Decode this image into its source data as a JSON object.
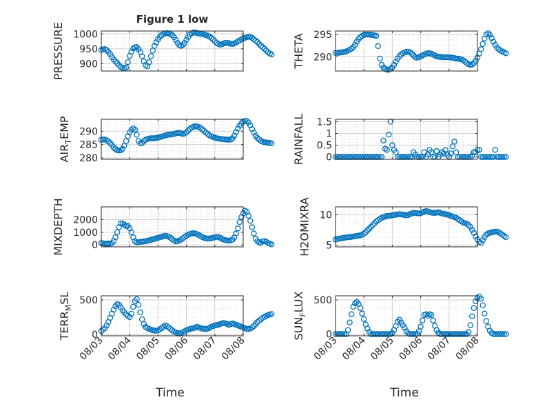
{
  "figure": {
    "title": "Figure 1 low"
  },
  "colors": {
    "marker": "#0072BD",
    "axis": "#262626",
    "grid": "#dcdcdc",
    "background": "#ffffff"
  },
  "chart_data": [
    {
      "type": "scatter",
      "id": "pressure",
      "title": "Figure 1 low",
      "ylabel": "PRESSURE",
      "xlabel": "",
      "ylim": [
        875,
        1010
      ],
      "yticks": [
        900,
        950,
        1000
      ],
      "xlim": [
        "08/03",
        "08/08"
      ],
      "grid": true,
      "minor_grid": true,
      "x_start": "08/03",
      "x_step_hours": 1.5,
      "y": [
        946,
        948,
        949,
        946,
        940,
        932,
        922,
        914,
        907,
        902,
        895,
        888,
        885,
        884,
        887,
        905,
        926,
        940,
        951,
        955,
        956,
        949,
        939,
        925,
        908,
        895,
        891,
        905,
        925,
        944,
        960,
        972,
        982,
        990,
        996,
        1000,
        1002,
        1003,
        1002,
        1000,
        996,
        989,
        980,
        970,
        962,
        960,
        963,
        970,
        980,
        990,
        998,
        1003,
        1005,
        1005,
        1003,
        1002,
        1001,
        1000,
        998,
        996,
        994,
        991,
        987,
        982,
        976,
        970,
        966,
        964,
        965,
        968,
        970,
        970,
        969,
        967,
        966,
        968,
        971,
        975,
        978,
        982,
        985,
        987,
        989,
        991,
        990,
        987,
        982,
        977,
        973,
        966,
        960,
        956,
        950,
        944,
        938,
        934,
        931
      ]
    },
    {
      "type": "scatter",
      "id": "theta",
      "title": "",
      "ylabel": "THETA",
      "xlabel": "",
      "ylim": [
        286.8,
        295.8
      ],
      "yticks": [
        290,
        295
      ],
      "xlim": [
        "08/03",
        "08/08"
      ],
      "grid": true,
      "minor_grid": true,
      "x_start": "08/03",
      "x_step_hours": 1.5,
      "y": [
        290.9,
        290.9,
        290.9,
        291.0,
        291.0,
        291.1,
        291.2,
        291.4,
        291.6,
        291.8,
        292.2,
        292.7,
        293.4,
        294.0,
        294.4,
        294.7,
        294.9,
        295.0,
        295.0,
        295.0,
        294.9,
        294.9,
        294.8,
        294.7,
        292.4,
        289.6,
        288.2,
        287.6,
        287.3,
        287.1,
        287.1,
        287.3,
        287.6,
        288.2,
        288.9,
        289.6,
        290.1,
        290.5,
        290.8,
        291.0,
        291.1,
        291.1,
        291.0,
        290.7,
        290.3,
        289.9,
        289.8,
        289.9,
        290.1,
        290.3,
        290.5,
        290.7,
        290.8,
        290.8,
        290.7,
        290.5,
        290.3,
        290.1,
        290.0,
        290.0,
        289.9,
        289.9,
        289.9,
        289.9,
        289.9,
        289.8,
        289.8,
        289.7,
        289.6,
        289.6,
        289.5,
        289.4,
        289.2,
        288.9,
        288.6,
        288.3,
        288.2,
        288.3,
        288.6,
        289.1,
        289.8,
        290.7,
        291.7,
        292.9,
        294.1,
        295.0,
        295.3,
        294.9,
        294.2,
        293.4,
        292.7,
        292.1,
        291.7,
        291.4,
        291.2,
        291.0,
        290.8
      ]
    },
    {
      "type": "scatter",
      "id": "air_temp",
      "title": "",
      "ylabel": "AIR_TEMP",
      "xlabel": "",
      "ylim": [
        279.5,
        294.5
      ],
      "yticks": [
        280,
        285,
        290
      ],
      "xlim": [
        "08/03",
        "08/08"
      ],
      "grid": true,
      "minor_grid": true,
      "x_start": "08/03",
      "x_step_hours": 1.5,
      "y": [
        286.8,
        286.9,
        286.9,
        286.6,
        286.2,
        285.6,
        284.9,
        284.0,
        283.3,
        282.9,
        282.8,
        282.9,
        283.4,
        284.6,
        286.3,
        288.2,
        289.6,
        290.5,
        291.1,
        290.6,
        288.7,
        286.4,
        285.5,
        285.6,
        286.3,
        286.8,
        287.1,
        287.3,
        287.4,
        287.4,
        287.4,
        287.5,
        287.6,
        287.8,
        288.0,
        288.2,
        288.4,
        288.6,
        288.7,
        288.8,
        288.9,
        289.0,
        289.2,
        289.4,
        289.4,
        289.2,
        289.0,
        289.2,
        289.6,
        290.3,
        290.9,
        291.4,
        291.7,
        291.9,
        291.8,
        291.6,
        291.2,
        290.7,
        290.1,
        289.5,
        289.0,
        288.5,
        288.1,
        287.8,
        287.6,
        287.4,
        287.3,
        287.2,
        287.1,
        287.0,
        286.9,
        286.9,
        286.8,
        286.9,
        287.4,
        288.4,
        289.7,
        291.0,
        292.1,
        293.0,
        293.6,
        293.9,
        293.8,
        293.3,
        292.2,
        290.8,
        289.5,
        288.4,
        287.5,
        286.9,
        286.4,
        286.1,
        285.9,
        285.8,
        285.7,
        285.6,
        285.5
      ]
    },
    {
      "type": "scatter",
      "id": "rainfall",
      "title": "",
      "ylabel": "RAINFALL",
      "xlabel": "",
      "ylim": [
        -0.1,
        1.6
      ],
      "yticks": [
        0,
        0.5,
        1,
        1.5
      ],
      "xlim": [
        "08/03",
        "08/08"
      ],
      "grid": true,
      "minor_grid": true,
      "x_start": "08/03",
      "x_step_hours": 1.5,
      "y": [
        0,
        0,
        0,
        0,
        0,
        0,
        0,
        0,
        0,
        0,
        0,
        0,
        0,
        0,
        0,
        0,
        0,
        0,
        0,
        0,
        0,
        0,
        0,
        0,
        0,
        0,
        0,
        0.7,
        0.35,
        0.3,
        0.95,
        1.5,
        0.5,
        0.3,
        0.2,
        0,
        0,
        0,
        0,
        0,
        0,
        0,
        0,
        0,
        0.2,
        0.1,
        0,
        0,
        0,
        0,
        0.2,
        0,
        0.1,
        0.3,
        0.2,
        0,
        0,
        0.25,
        0,
        0.1,
        0.2,
        0.15,
        0.3,
        0.1,
        0,
        0.15,
        0.45,
        0.65,
        0.2,
        0,
        0,
        0,
        0,
        0,
        0,
        0,
        0,
        0.05,
        0.2,
        0.2,
        0.3,
        0.3,
        0,
        0,
        0,
        0,
        0,
        0,
        0,
        0,
        0.3,
        0,
        0,
        0,
        0,
        0,
        0
      ]
    },
    {
      "type": "scatter",
      "id": "mixdepth",
      "title": "",
      "ylabel": "MIXDEPTH",
      "xlabel": "",
      "ylim": [
        -150,
        3000
      ],
      "yticks": [
        0,
        1000,
        2000
      ],
      "xlim": [
        "08/03",
        "08/08"
      ],
      "grid": true,
      "minor_grid": true,
      "x_start": "08/03",
      "x_step_hours": 1.5,
      "y": [
        150,
        120,
        100,
        100,
        100,
        110,
        150,
        300,
        600,
        1000,
        1400,
        1700,
        1700,
        1600,
        1500,
        1500,
        1300,
        1000,
        600,
        300,
        200,
        220,
        240,
        260,
        280,
        300,
        330,
        360,
        400,
        440,
        480,
        520,
        560,
        600,
        640,
        690,
        720,
        700,
        650,
        560,
        460,
        350,
        280,
        300,
        350,
        420,
        520,
        630,
        720,
        800,
        860,
        900,
        920,
        900,
        850,
        780,
        700,
        620,
        560,
        520,
        500,
        510,
        530,
        560,
        600,
        640,
        620,
        560,
        480,
        420,
        380,
        350,
        340,
        360,
        420,
        600,
        900,
        1300,
        1800,
        2200,
        2500,
        2700,
        2600,
        2300,
        1900,
        1400,
        900,
        500,
        300,
        200,
        150,
        280,
        300,
        250,
        150,
        100,
        50
      ]
    },
    {
      "type": "scatter",
      "id": "h2omixra",
      "title": "",
      "ylabel": "H2OMIXRA",
      "xlabel": "",
      "ylim": [
        4.7,
        11.3
      ],
      "yticks": [
        5,
        10
      ],
      "xlim": [
        "08/03",
        "08/08"
      ],
      "grid": true,
      "minor_grid": true,
      "x_start": "08/03",
      "x_step_hours": 1.5,
      "y": [
        5.9,
        6.0,
        6.05,
        6.1,
        6.15,
        6.2,
        6.25,
        6.3,
        6.3,
        6.35,
        6.4,
        6.45,
        6.5,
        6.55,
        6.6,
        6.7,
        6.9,
        7.1,
        7.4,
        7.7,
        8.0,
        8.3,
        8.6,
        8.9,
        9.1,
        9.3,
        9.5,
        9.6,
        9.7,
        9.8,
        9.8,
        9.85,
        9.9,
        9.95,
        10.0,
        10.05,
        10.1,
        10.05,
        10.0,
        9.95,
        9.9,
        9.95,
        10.1,
        10.2,
        10.3,
        10.3,
        10.25,
        10.2,
        10.25,
        10.4,
        10.5,
        10.6,
        10.55,
        10.45,
        10.35,
        10.3,
        10.3,
        10.35,
        10.4,
        10.3,
        10.2,
        10.15,
        10.1,
        10.0,
        9.95,
        9.8,
        9.7,
        9.6,
        9.5,
        9.3,
        9.1,
        8.9,
        8.7,
        8.6,
        8.5,
        8.3,
        8.0,
        7.5,
        7.0,
        6.4,
        5.9,
        5.5,
        5.3,
        5.8,
        6.3,
        6.7,
        6.9,
        7.0,
        7.1,
        7.15,
        7.2,
        7.2,
        7.1,
        6.9,
        6.7,
        6.5,
        6.3
      ]
    },
    {
      "type": "scatter",
      "id": "terr_msl",
      "title": "",
      "ylabel": "TERR_MSL",
      "xlabel": "Time",
      "ylim": [
        -20,
        560
      ],
      "yticks": [
        0,
        500
      ],
      "xlim": [
        "08/03",
        "08/08"
      ],
      "xticks": [
        "08/03",
        "08/04",
        "08/05",
        "08/06",
        "08/07",
        "08/08"
      ],
      "grid": true,
      "minor_grid": true,
      "x_start": "08/03",
      "x_step_hours": 1.5,
      "y": [
        50,
        70,
        90,
        130,
        180,
        240,
        300,
        360,
        410,
        440,
        430,
        390,
        350,
        320,
        290,
        270,
        250,
        300,
        400,
        480,
        510,
        430,
        320,
        220,
        150,
        110,
        90,
        80,
        70,
        60,
        55,
        55,
        60,
        75,
        90,
        110,
        130,
        120,
        100,
        80,
        60,
        40,
        30,
        20,
        10,
        20,
        30,
        45,
        60,
        70,
        80,
        85,
        90,
        100,
        110,
        100,
        90,
        85,
        80,
        75,
        85,
        95,
        110,
        120,
        130,
        135,
        140,
        150,
        160,
        165,
        160,
        150,
        140,
        150,
        160,
        150,
        140,
        130,
        120,
        110,
        100,
        90,
        80,
        80,
        85,
        100,
        120,
        150,
        180,
        200,
        220,
        240,
        255,
        270,
        280,
        290,
        295
      ]
    },
    {
      "type": "scatter",
      "id": "sun_flux",
      "title": "",
      "ylabel": "SUN_FLUX",
      "xlabel": "Time",
      "ylim": [
        -25,
        560
      ],
      "yticks": [
        0,
        500
      ],
      "xlim": [
        "08/03",
        "08/08"
      ],
      "xticks": [
        "08/03",
        "08/04",
        "08/05",
        "08/06",
        "08/07",
        "08/08"
      ],
      "grid": true,
      "minor_grid": true,
      "x_start": "08/03",
      "x_step_hours": 1.5,
      "y": [
        0,
        0,
        0,
        0,
        0,
        0,
        0,
        60,
        170,
        290,
        400,
        450,
        470,
        440,
        380,
        300,
        220,
        140,
        80,
        30,
        0,
        0,
        0,
        0,
        0,
        0,
        0,
        0,
        0,
        0,
        0,
        0,
        15,
        60,
        120,
        180,
        210,
        170,
        130,
        90,
        40,
        10,
        0,
        0,
        0,
        0,
        5,
        40,
        110,
        200,
        280,
        290,
        270,
        290,
        280,
        200,
        120,
        60,
        20,
        0,
        0,
        0,
        0,
        0,
        0,
        0,
        0,
        0,
        0,
        0,
        0,
        0,
        0,
        0,
        0,
        30,
        130,
        260,
        380,
        480,
        530,
        550,
        520,
        420,
        300,
        190,
        110,
        50,
        15,
        0,
        0,
        0,
        0,
        0,
        0,
        0,
        0
      ]
    }
  ]
}
